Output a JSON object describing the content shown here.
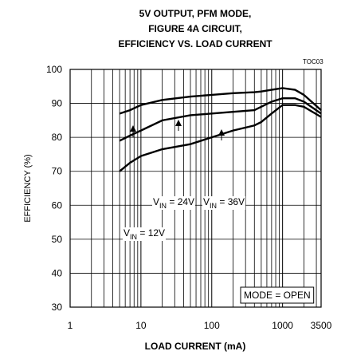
{
  "chart_data": {
    "type": "line",
    "title": [
      "5V OUTPUT, PFM MODE,",
      "FIGURE 4A CIRCUIT,",
      "EFFICIENCY VS. LOAD CURRENT"
    ],
    "code": "TOC03",
    "xlabel": "LOAD CURRENT (mA)",
    "ylabel": "EFFICIENCY (%)",
    "x": [
      5,
      7,
      10,
      20,
      50,
      100,
      200,
      400,
      500,
      700,
      1000,
      1500,
      2000,
      3500
    ],
    "series": [
      {
        "name": [
          "V",
          "IN",
          " = 12V"
        ],
        "color": "#000000",
        "values": [
          87,
          88,
          89.5,
          91,
          92,
          92.5,
          93,
          93.3,
          93.5,
          94,
          94.5,
          94,
          92.5,
          88
        ]
      },
      {
        "name": [
          "V",
          "IN",
          " = 24V"
        ],
        "color": "#000000",
        "values": [
          79,
          80.5,
          82,
          85,
          86.5,
          87,
          87.5,
          88,
          89,
          90.5,
          91.5,
          91.5,
          90.5,
          87
        ]
      },
      {
        "name": [
          "V",
          "IN",
          " = 36V"
        ],
        "color": "#000000",
        "values": [
          70,
          72.5,
          74.5,
          76.5,
          78,
          80,
          82,
          83.5,
          84.5,
          87,
          89.5,
          89.5,
          89,
          86
        ]
      }
    ],
    "xlim": [
      1,
      3500
    ],
    "xticks": [
      1,
      10,
      100,
      1000,
      3500
    ],
    "xlog": true,
    "ylim": [
      30,
      100
    ],
    "yticks": [
      30,
      40,
      50,
      60,
      70,
      80,
      90,
      100
    ],
    "grid": true,
    "annotation": "MODE = OPEN"
  }
}
